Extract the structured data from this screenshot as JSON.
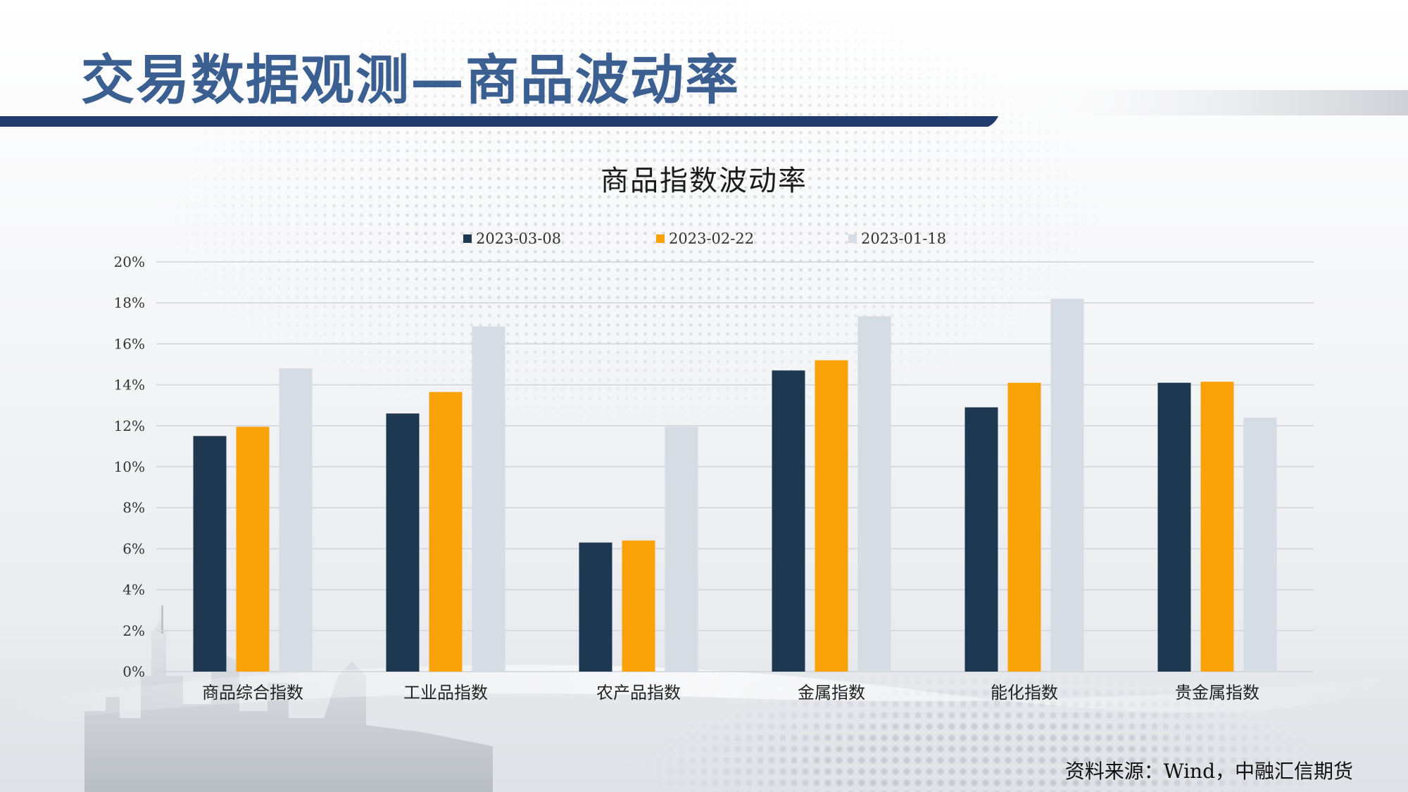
{
  "page": {
    "title": "交易数据观测—商品波动率",
    "source": "资料来源：Wind，中融汇信期货"
  },
  "colors": {
    "title_text": "#3a5f90",
    "band_navy": "#1f3a6b",
    "series_1": "#1f3852",
    "series_2": "#f9a20a",
    "series_3": "#d6dce4"
  },
  "chart_data": {
    "type": "bar",
    "title": "商品指数波动率",
    "xlabel": "",
    "ylabel": "",
    "ylim": [
      0,
      20
    ],
    "yticks": [
      "0%",
      "2%",
      "4%",
      "6%",
      "8%",
      "10%",
      "12%",
      "14%",
      "16%",
      "18%",
      "20%"
    ],
    "grid": true,
    "legend_position": "top",
    "categories": [
      "商品综合指数",
      "工业品指数",
      "农产品指数",
      "金属指数",
      "能化指数",
      "贵金属指数"
    ],
    "series": [
      {
        "name": "2023-03-08",
        "color": "#1f3852",
        "values": [
          11.5,
          12.6,
          6.3,
          14.7,
          12.9,
          14.1
        ]
      },
      {
        "name": "2023-02-22",
        "color": "#f9a20a",
        "values": [
          11.95,
          13.65,
          6.4,
          15.2,
          14.1,
          14.15
        ]
      },
      {
        "name": "2023-01-18",
        "color": "#d6dce4",
        "values": [
          14.8,
          16.85,
          11.95,
          17.35,
          18.2,
          12.4
        ]
      }
    ]
  }
}
